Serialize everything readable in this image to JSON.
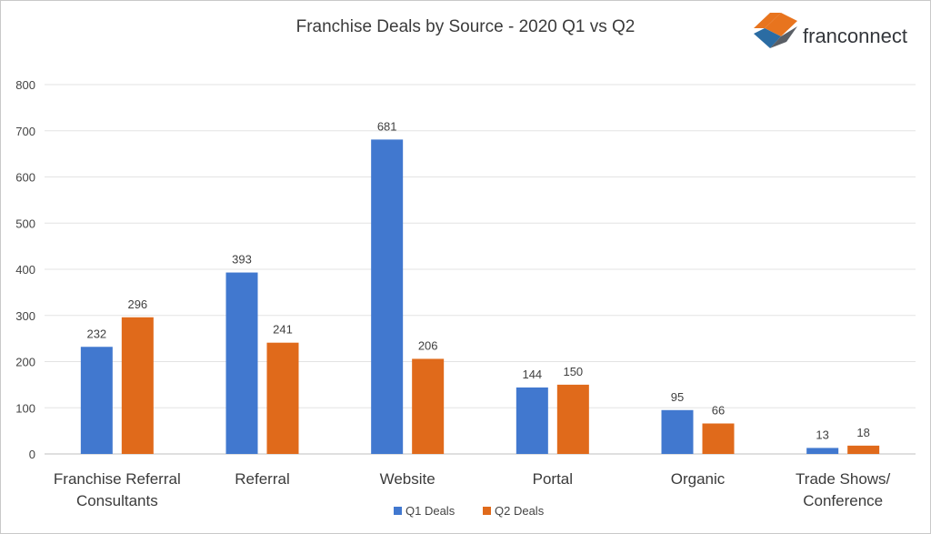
{
  "brand": {
    "name": "franconnect",
    "icon": "franconnect-logo-icon",
    "colors": {
      "orange": "#E8741E",
      "blue": "#2B6CA3",
      "gray": "#5A5F66"
    }
  },
  "chart_data": {
    "type": "bar",
    "title": "Franchise Deals by Source - 2020 Q1 vs Q2",
    "categories": [
      [
        "Franchise Referral",
        "Consultants"
      ],
      [
        "Referral"
      ],
      [
        "Website"
      ],
      [
        "Portal"
      ],
      [
        "Organic"
      ],
      [
        "Trade Shows/",
        "Conference"
      ]
    ],
    "series": [
      {
        "name": "Q1 Deals",
        "color": "#4178CF",
        "values": [
          232,
          393,
          681,
          144,
          95,
          13
        ]
      },
      {
        "name": "Q2 Deals",
        "color": "#E06A1B",
        "values": [
          296,
          241,
          206,
          150,
          66,
          18
        ]
      }
    ],
    "ylim": [
      0,
      800
    ],
    "yticks": [
      0,
      100,
      200,
      300,
      400,
      500,
      600,
      700,
      800
    ],
    "grid": true,
    "legend_position": "bottom",
    "xlabel": "",
    "ylabel": ""
  }
}
